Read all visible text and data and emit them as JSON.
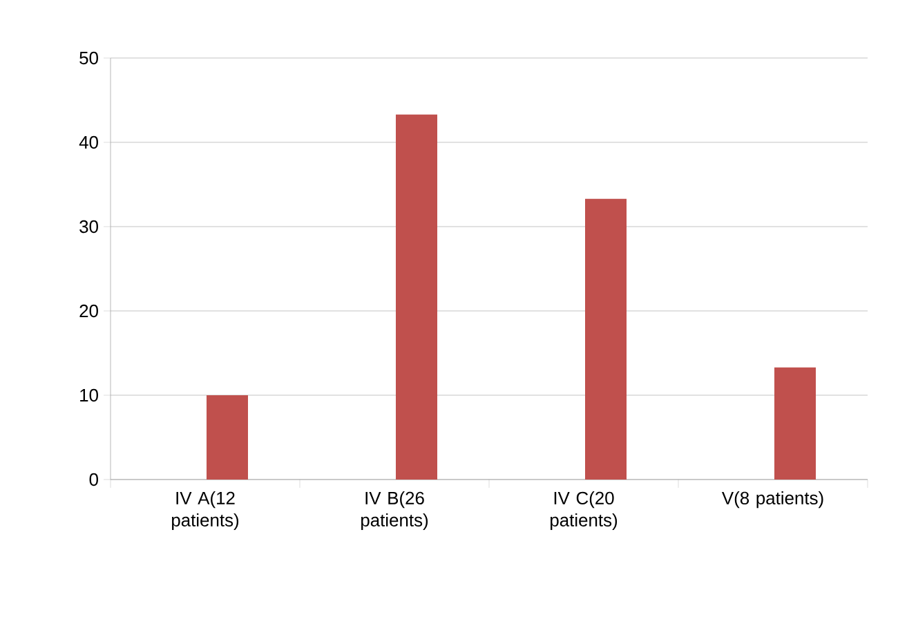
{
  "chart_data": {
    "type": "bar",
    "categories": [
      "IV A(12 patients)",
      "IV B(26 patients)",
      "IV C(20 patients)",
      "V(8 patients)"
    ],
    "values": [
      10,
      43.3,
      33.3,
      13.3
    ],
    "color": "#c0504d",
    "ylim": [
      0,
      50
    ],
    "yticks": [
      0,
      10,
      20,
      30,
      40,
      50
    ],
    "grid": "y"
  }
}
